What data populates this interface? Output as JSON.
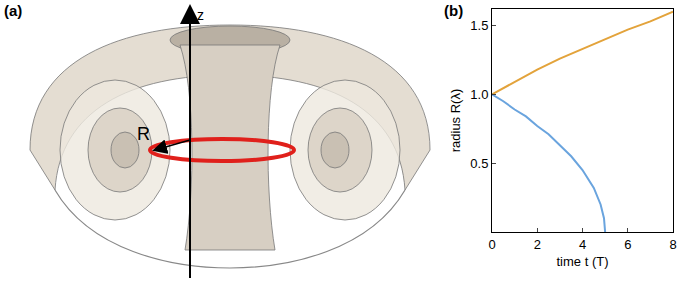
{
  "diagram": {
    "label": "(a)",
    "axis_label": "z",
    "radius_label": "R"
  },
  "chart_data": {
    "type": "line",
    "label": "(b)",
    "x_label": "time t (T)",
    "y_label": "radius R(λ)",
    "xlim": [
      0,
      8
    ],
    "xticks": [
      0,
      2,
      4,
      6,
      8
    ],
    "ylim": [
      0,
      1.62
    ],
    "yticks": [
      0.5,
      {
        "value": 1,
        "label": "1.0"
      },
      1.5
    ],
    "grid": false,
    "series": [
      {
        "color": "#e3a33b",
        "x": [
          0,
          1,
          2,
          3,
          4,
          5,
          6,
          7,
          8
        ],
        "values": [
          1.0,
          1.09,
          1.18,
          1.26,
          1.33,
          1.4,
          1.47,
          1.53,
          1.6
        ]
      },
      {
        "color": "#6aa4de",
        "x": [
          0,
          0.5,
          1,
          1.5,
          2,
          2.5,
          3,
          3.5,
          4,
          4.5,
          4.8,
          4.95,
          5
        ],
        "values": [
          1.0,
          0.95,
          0.89,
          0.84,
          0.77,
          0.71,
          0.63,
          0.55,
          0.45,
          0.32,
          0.2,
          0.1,
          0
        ]
      }
    ]
  }
}
